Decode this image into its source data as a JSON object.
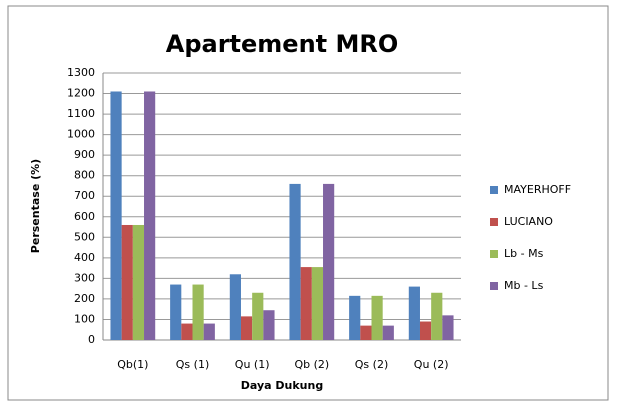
{
  "chart_data": {
    "type": "bar",
    "title": "Apartement MRO",
    "x_label": "Daya Dukung",
    "y_label": "Persentase (%)",
    "categories": [
      "Qb(1)",
      "Qs (1)",
      "Qu (1)",
      "Qb (2)",
      "Qs (2)",
      "Qu (2)"
    ],
    "series": [
      {
        "name": "MAYERHOFF",
        "color": "#4f81bd",
        "values": [
          1210,
          270,
          320,
          760,
          215,
          260
        ]
      },
      {
        "name": "LUCIANO",
        "color": "#c0504d",
        "values": [
          560,
          80,
          115,
          355,
          70,
          90
        ]
      },
      {
        "name": "Lb - Ms",
        "color": "#9bbb59",
        "values": [
          560,
          270,
          230,
          355,
          215,
          230
        ]
      },
      {
        "name": "Mb - Ls",
        "color": "#8064a2",
        "values": [
          1210,
          80,
          145,
          760,
          70,
          120
        ]
      }
    ],
    "ylim": [
      0,
      1300
    ],
    "yticks": [
      0,
      100,
      200,
      300,
      400,
      500,
      600,
      700,
      800,
      900,
      1000,
      1100,
      1200,
      1300
    ],
    "grid": true,
    "legend": "right"
  }
}
